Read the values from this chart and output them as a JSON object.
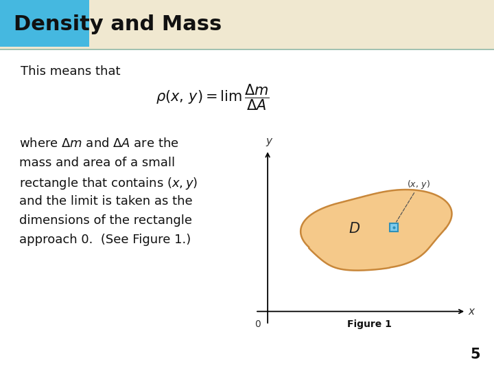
{
  "title": "Density and Mass",
  "title_bg_color": "#f0e8d0",
  "title_blue_rect_color": "#45b8e0",
  "title_fontsize": 22,
  "bg_color": "#ffffff",
  "region_fill": "#f5c98a",
  "region_edge": "#c8873a",
  "small_rect_fill": "#80ccee",
  "small_rect_edge": "#3090b8",
  "figure_label": "Figure 1",
  "page_number": "5",
  "teal_line_color": "#90b8a8"
}
